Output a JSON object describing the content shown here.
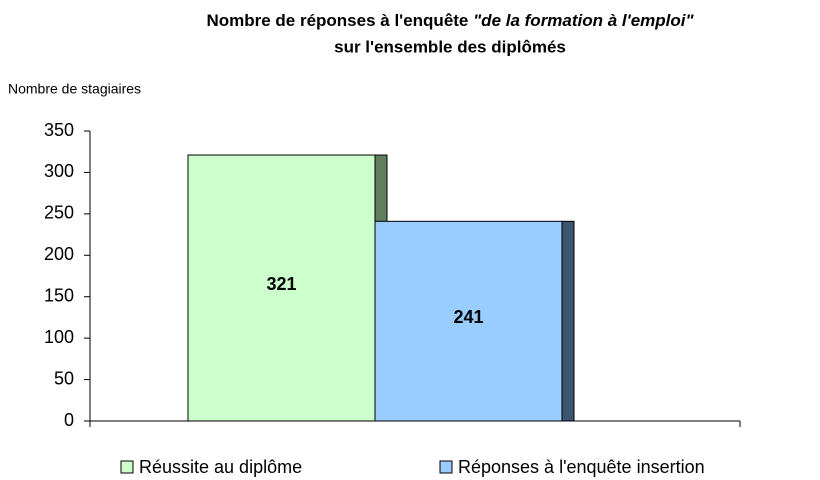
{
  "chart_data": {
    "type": "bar",
    "title": {
      "line1": "Nombre de réponses à l'enquête",
      "line1_italic": "\"de la formation à l'emploi\"",
      "line2": "sur l'ensemble des diplômés"
    },
    "y_label": "Nombre de stagiaires",
    "categories": [
      null
    ],
    "series": [
      {
        "name": "Réussite au diplôme",
        "color": "#ccffcc",
        "side_color": "#5f7f5f",
        "values": [
          321
        ]
      },
      {
        "name": "Réponses à l'enquête insertion",
        "color": "#99ccff",
        "side_color": "#3d5570",
        "values": [
          241
        ]
      }
    ],
    "ylim": [
      0,
      350
    ],
    "yticks": [
      0,
      50,
      100,
      150,
      200,
      250,
      300,
      350
    ],
    "legend": "bottom"
  }
}
